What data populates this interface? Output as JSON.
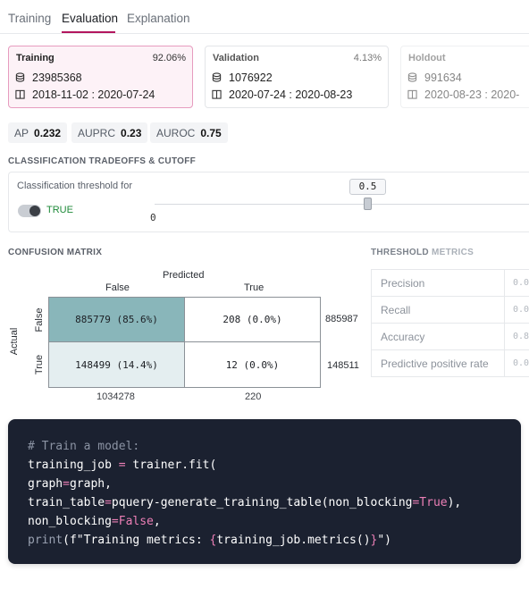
{
  "tabs": [
    {
      "label": "Training",
      "active": false
    },
    {
      "label": "Evaluation",
      "active": true
    },
    {
      "label": "Explanation",
      "active": false
    }
  ],
  "splits": [
    {
      "title": "Training",
      "percent": "92.06%",
      "rows": "23985368",
      "dates": "2018-11-02 : 2020-07-24",
      "active": true
    },
    {
      "title": "Validation",
      "percent": "4.13%",
      "rows": "1076922",
      "dates": "2020-07-24 : 2020-08-23",
      "active": false
    },
    {
      "title": "Holdout",
      "percent": "",
      "rows": "991634",
      "dates": "2020-08-23 : 2020-",
      "active": false
    }
  ],
  "metrics": [
    {
      "label": "AP",
      "value": "0.232"
    },
    {
      "label": "AUPRC",
      "value": "0.23"
    },
    {
      "label": "AUROC",
      "value": "0.75"
    }
  ],
  "tradeoffs": {
    "section_title": "CLASSIFICATION TRADEOFFS & CUTOFF",
    "threshold_label": "Classification threshold for",
    "toggle_label": "TRUE",
    "toggle_on": true,
    "threshold_value": "0.5",
    "slider_min": "0",
    "slider_fraction": 0.5
  },
  "confusion_matrix": {
    "section_title": "CONFUSION MATRIX",
    "predicted_label": "Predicted",
    "actual_label": "Actual",
    "col_labels": [
      "False",
      "True"
    ],
    "row_labels": [
      "False",
      "True"
    ],
    "cells": [
      [
        "885779 (85.6%)",
        "208 (0.0%)"
      ],
      [
        "148499 (14.4%)",
        "12 (0.0%)"
      ]
    ],
    "row_totals": [
      "885987",
      "148511"
    ],
    "col_totals": [
      "1034278",
      "220"
    ],
    "colors": {
      "high": "#89b6ba",
      "low": "#e4eef0",
      "none": "#ffffff"
    }
  },
  "threshold_metrics": {
    "title_a": "THRESHOLD",
    "title_b": "METRICS",
    "rows": [
      {
        "name": "Precision",
        "value": "0.0"
      },
      {
        "name": "Recall",
        "value": "0.0"
      },
      {
        "name": "Accuracy",
        "value": "0.8"
      },
      {
        "name": "Predictive positive rate",
        "value": "0.0"
      }
    ]
  },
  "code": {
    "comment": "# Train a model:",
    "line1_a": "training_job ",
    "line1_op": "=",
    "line1_b": " trainer.fit(",
    "line2_a": "graph",
    "line2_op": "=",
    "line2_b": "graph,",
    "line3_a": "train_table",
    "line3_op": "=",
    "line3_b": "pquery-generate_training_table(non_blocking",
    "line3_op2": "=",
    "line3_kw": "True",
    "line3_c": "),",
    "line4_a": "non_blocking",
    "line4_op": "=",
    "line4_kw": "False",
    "line4_c": ",",
    "line5_fn": "print",
    "line5_a": "(",
    "line5_fstr": "f\"Training metrics: ",
    "line5_brace_open": "{",
    "line5_expr": "training_job.metrics()",
    "line5_brace_close": "}",
    "line5_end": "\")"
  }
}
